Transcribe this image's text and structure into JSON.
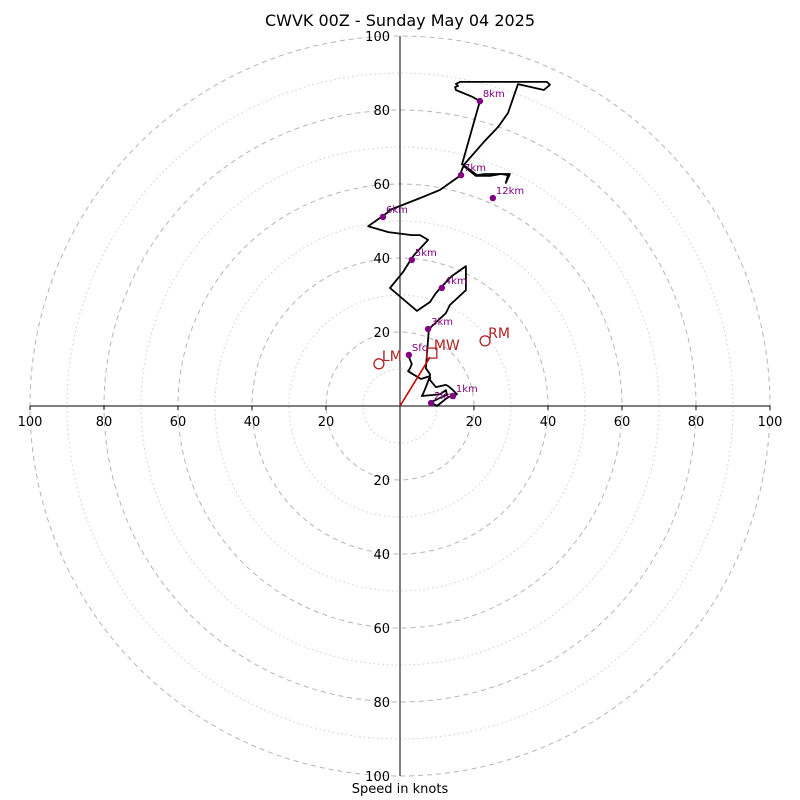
{
  "chart_data": {
    "type": "hodograph",
    "title": "CWVK 00Z - Sunday May 04 2025",
    "xlabel": "Speed in knots",
    "axis_range": [
      -100,
      100
    ],
    "ring_step": 10,
    "labeled_rings": [
      20,
      40,
      60,
      80,
      100
    ],
    "x_tick_labels": [
      {
        "v": -100,
        "text": "100"
      },
      {
        "v": -80,
        "text": "80"
      },
      {
        "v": -60,
        "text": "60"
      },
      {
        "v": -40,
        "text": "40"
      },
      {
        "v": -20,
        "text": "20"
      },
      {
        "v": 20,
        "text": "20"
      },
      {
        "v": 40,
        "text": "40"
      },
      {
        "v": 60,
        "text": "60"
      },
      {
        "v": 80,
        "text": "80"
      },
      {
        "v": 100,
        "text": "100"
      }
    ],
    "y_tick_labels": [
      {
        "v": 100,
        "text": "100"
      },
      {
        "v": 80,
        "text": "80"
      },
      {
        "v": 60,
        "text": "60"
      },
      {
        "v": 40,
        "text": "40"
      },
      {
        "v": 20,
        "text": "20"
      },
      {
        "v": -20,
        "text": "20"
      },
      {
        "v": -40,
        "text": "40"
      },
      {
        "v": -60,
        "text": "60"
      },
      {
        "v": -80,
        "text": "80"
      },
      {
        "v": -100,
        "text": "100"
      }
    ],
    "wind_trace": {
      "color": "#000000",
      "points": [
        [
          2.2,
          13.8
        ],
        [
          3.2,
          11.3
        ],
        [
          2.7,
          10.2
        ],
        [
          2.2,
          9.4
        ],
        [
          3.5,
          8.6
        ],
        [
          5.7,
          7.3
        ],
        [
          8.1,
          8.1
        ],
        [
          7.0,
          5.1
        ],
        [
          6.2,
          3.2
        ],
        [
          5.9,
          2.7
        ],
        [
          9.2,
          3.0
        ],
        [
          10.8,
          3.2
        ],
        [
          12.4,
          4.3
        ],
        [
          12.7,
          3.0
        ],
        [
          11.9,
          2.7
        ],
        [
          9.2,
          1.4
        ],
        [
          8.1,
          1.1
        ],
        [
          10.0,
          0.0
        ],
        [
          13.0,
          2.4
        ],
        [
          14.3,
          2.7
        ],
        [
          15.4,
          3.2
        ],
        [
          14.3,
          4.3
        ],
        [
          13.0,
          5.4
        ],
        [
          12.4,
          5.7
        ],
        [
          9.7,
          5.1
        ],
        [
          8.1,
          7.0
        ],
        [
          8.1,
          8.6
        ],
        [
          7.0,
          10.2
        ],
        [
          7.6,
          18.1
        ],
        [
          7.8,
          20.8
        ],
        [
          12.4,
          25.1
        ],
        [
          13.5,
          27.3
        ],
        [
          17.8,
          31.3
        ],
        [
          17.8,
          37.8
        ],
        [
          14.0,
          35.1
        ],
        [
          11.1,
          32.1
        ],
        [
          9.7,
          30.5
        ],
        [
          8.1,
          28.1
        ],
        [
          4.6,
          25.7
        ],
        [
          -2.7,
          31.9
        ],
        [
          0.8,
          36.2
        ],
        [
          2.7,
          39.2
        ],
        [
          3.8,
          40.8
        ],
        [
          7.6,
          44.9
        ],
        [
          5.4,
          46.2
        ],
        [
          3.2,
          46.2
        ],
        [
          -3.2,
          47.0
        ],
        [
          -8.6,
          48.6
        ],
        [
          -3.5,
          52.2
        ],
        [
          -2.7,
          53.0
        ],
        [
          5.4,
          56.2
        ],
        [
          10.8,
          58.4
        ],
        [
          16.2,
          62.2
        ],
        [
          16.7,
          63.8
        ],
        [
          17.2,
          64.9
        ],
        [
          20.5,
          62.2
        ],
        [
          24.3,
          62.2
        ],
        [
          27.3,
          62.7
        ],
        [
          29.2,
          62.4
        ],
        [
          28.6,
          60.3
        ],
        [
          29.7,
          62.7
        ],
        [
          27.3,
          62.7
        ],
        [
          23.0,
          62.7
        ],
        [
          20.8,
          62.4
        ],
        [
          17.2,
          65.1
        ],
        [
          22.7,
          71.4
        ],
        [
          26.5,
          75.4
        ],
        [
          29.2,
          79.2
        ],
        [
          31.9,
          87.0
        ],
        [
          38.9,
          85.4
        ],
        [
          40.5,
          86.8
        ],
        [
          39.7,
          87.6
        ],
        [
          32.7,
          87.6
        ],
        [
          30.5,
          87.6
        ],
        [
          25.1,
          87.6
        ],
        [
          20.3,
          87.6
        ],
        [
          19.7,
          87.6
        ],
        [
          16.2,
          87.6
        ],
        [
          15.1,
          87.0
        ],
        [
          15.7,
          86.5
        ],
        [
          14.9,
          86.2
        ],
        [
          15.1,
          85.4
        ],
        [
          19.7,
          83.5
        ],
        [
          21.6,
          82.4
        ],
        [
          16.7,
          65.1
        ]
      ]
    },
    "height_markers": [
      {
        "label": "Sfc",
        "x": 2.4,
        "y": 13.8
      },
      {
        "label": "1km",
        "x": 14.3,
        "y": 2.7
      },
      {
        "label": "2km",
        "x": 8.4,
        "y": 0.8
      },
      {
        "label": "3km",
        "x": 7.6,
        "y": 20.8
      },
      {
        "label": "4km",
        "x": 11.3,
        "y": 31.9
      },
      {
        "label": "5km",
        "x": 3.2,
        "y": 39.5
      },
      {
        "label": "6km",
        "x": -4.6,
        "y": 51.1
      },
      {
        "label": "7km",
        "x": 16.5,
        "y": 62.4
      },
      {
        "label": "8km",
        "x": 21.6,
        "y": 82.4
      },
      {
        "label": "12km",
        "x": 25.1,
        "y": 56.2
      }
    ],
    "storm_motion": [
      {
        "label": "RM",
        "x": 23.0,
        "y": 17.6,
        "marker": "circle"
      },
      {
        "label": "LM",
        "x": -5.7,
        "y": 11.4,
        "marker": "circle"
      },
      {
        "label": "MW",
        "x": 8.6,
        "y": 14.3,
        "marker": "square"
      }
    ],
    "storm_vector": {
      "from": [
        0,
        0
      ],
      "to": [
        8.1,
        13.2
      ],
      "color": "#cc0000"
    },
    "colors": {
      "trace": "#000000",
      "height_marker": "#800080",
      "storm": "#b22222",
      "ring_major": "#b5b5b5",
      "ring_minor": "#cfcfcf"
    },
    "grid": true
  }
}
